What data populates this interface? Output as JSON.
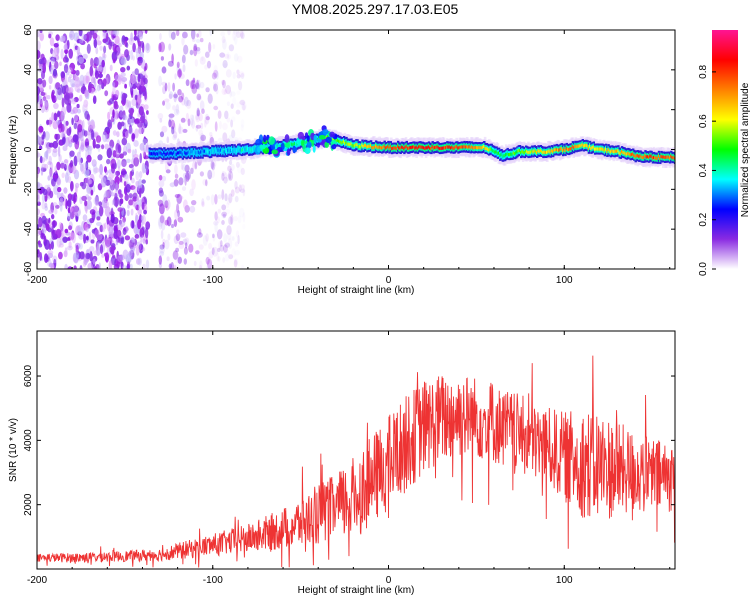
{
  "title": "YM08.2025.297.17.03.E05",
  "colors": {
    "snr_line": "#ee3333",
    "colorbar_stops": [
      "#ffffff",
      "#8a2be2",
      "#0000ff",
      "#00ffff",
      "#00ff00",
      "#ffff00",
      "#ff8000",
      "#ff0000",
      "#ff1493"
    ]
  },
  "chart_data": [
    {
      "type": "heatmap",
      "title": "",
      "xlabel": "Height of straight line (km)",
      "ylabel": "Frequency (Hz)",
      "xlim": [
        -200,
        163
      ],
      "ylim": [
        -60,
        60
      ],
      "xticks": [
        -200,
        -100,
        0,
        100
      ],
      "yticks": [
        60,
        40,
        20,
        0,
        -20,
        -40,
        -60
      ],
      "colorbar": {
        "label": "Normalized spectral amplitude",
        "range": [
          0.0,
          0.97
        ],
        "ticks": [
          0.0,
          0.2,
          0.4,
          0.6,
          0.8
        ]
      },
      "track": {
        "x": [
          -136,
          -120,
          -100,
          -80,
          -60,
          -45,
          -35,
          -20,
          0,
          20,
          40,
          55,
          60,
          65,
          75,
          90,
          100,
          110,
          120,
          130,
          140,
          150,
          163
        ],
        "frequency_hz": [
          -2,
          -2,
          -1,
          0,
          2,
          4,
          6,
          2,
          1,
          1,
          1,
          1,
          -1,
          -3,
          -1,
          -1,
          0,
          2,
          0,
          -1,
          -3,
          -4,
          -4
        ],
        "amplitude": [
          0.25,
          0.3,
          0.35,
          0.4,
          0.45,
          0.5,
          0.55,
          0.6,
          0.85,
          0.9,
          0.85,
          0.7,
          0.5,
          0.45,
          0.6,
          0.7,
          0.8,
          0.75,
          0.65,
          0.7,
          0.8,
          0.85,
          0.8
        ]
      },
      "noise_regions": [
        {
          "x_range": [
            -200,
            -137
          ],
          "amplitude": 0.15
        },
        {
          "x_range": [
            -130,
            -82
          ],
          "amplitude": 0.05
        }
      ]
    },
    {
      "type": "line",
      "title": "",
      "xlabel": "Height of straight line (km)",
      "ylabel": "SNR (10 * v/v)",
      "xlim": [
        -200,
        163
      ],
      "ylim": [
        0,
        7400
      ],
      "xticks": [
        -200,
        -100,
        0,
        100
      ],
      "yticks": [
        2000,
        4000,
        6000
      ],
      "series": [
        {
          "name": "SNR",
          "x": [
            -200,
            -180,
            -160,
            -140,
            -130,
            -120,
            -110,
            -100,
            -90,
            -80,
            -70,
            -60,
            -50,
            -40,
            -30,
            -20,
            -10,
            0,
            10,
            20,
            30,
            40,
            50,
            60,
            70,
            80,
            90,
            100,
            110,
            120,
            130,
            140,
            150,
            160,
            163
          ],
          "y": [
            350,
            350,
            380,
            420,
            450,
            550,
            650,
            750,
            850,
            950,
            1100,
            1250,
            1450,
            1700,
            1900,
            2200,
            2700,
            3300,
            3900,
            4400,
            4700,
            4800,
            4700,
            4500,
            4300,
            4050,
            3800,
            3500,
            3300,
            3200,
            3100,
            3000,
            2900,
            2850,
            2800
          ],
          "noise_amplitude": [
            120,
            150,
            160,
            180,
            200,
            260,
            300,
            350,
            400,
            450,
            550,
            650,
            800,
            950,
            1050,
            1300,
            1400,
            1500,
            1500,
            1500,
            1400,
            1400,
            1300,
            1250,
            1250,
            1250,
            1250,
            1400,
            1700,
            1800,
            1500,
            1300,
            1200,
            1100,
            1000
          ]
        }
      ]
    }
  ]
}
